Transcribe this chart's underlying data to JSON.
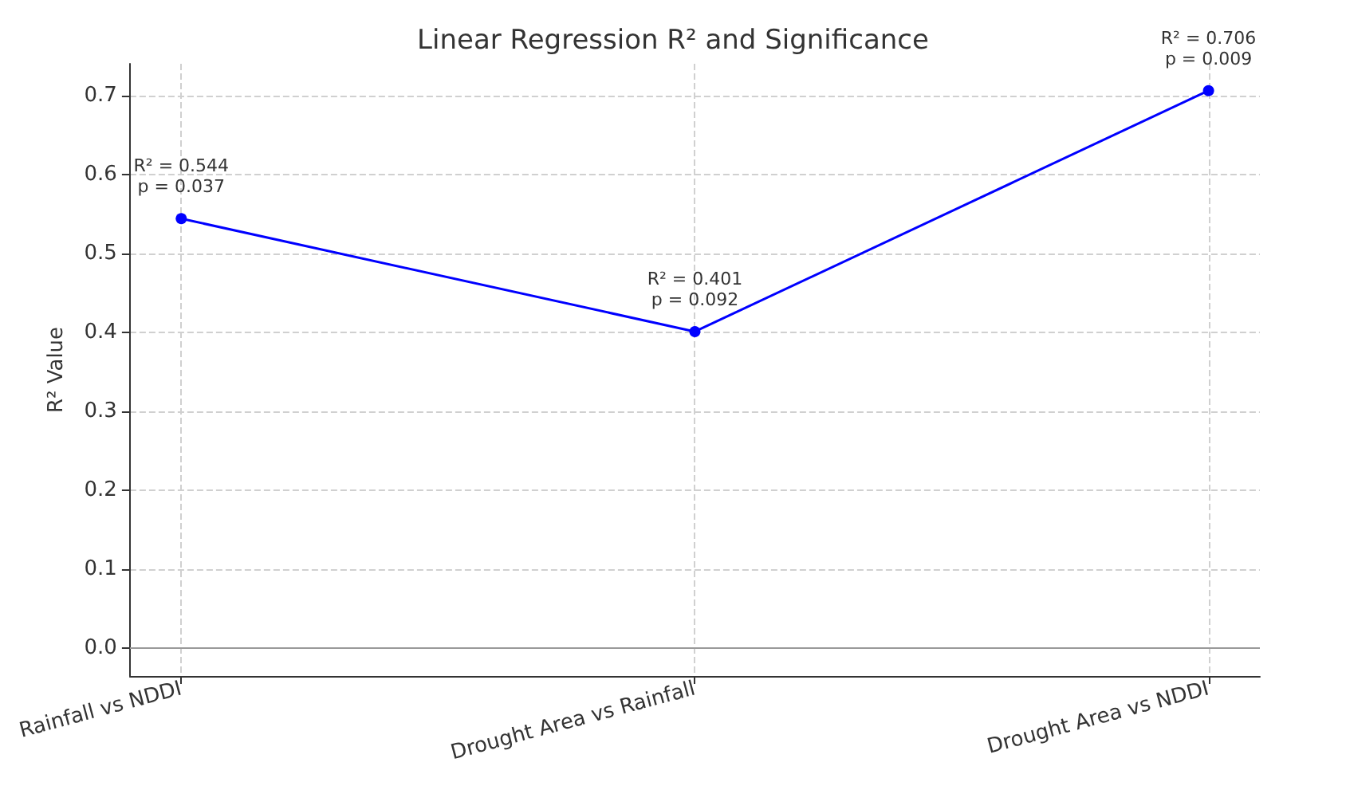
{
  "chart_data": {
    "type": "line",
    "title": "Linear Regression R² and Significance",
    "ylabel": "R² Value",
    "categories": [
      "Rainfall vs NDDI",
      "Drought Area vs Rainfall",
      "Drought Area vs NDDI"
    ],
    "series": [
      {
        "color": "#0000ff",
        "values": [
          0.544,
          0.401,
          0.706
        ],
        "value_labels": [
          "R² = 0.544\np = 0.037",
          "R² = 0.401\np = 0.092",
          "R² = 0.706\np = 0.009"
        ]
      }
    ],
    "ylim": [
      -0.035,
      0.74
    ],
    "yticks": [
      {
        "value": 0,
        "label": "0.0"
      },
      {
        "value": 0.1,
        "label": "0.1"
      },
      {
        "value": 0.2,
        "label": "0.2"
      },
      {
        "value": 0.3,
        "label": "0.3"
      },
      {
        "value": 0.4,
        "label": "0.4"
      },
      {
        "value": 0.5,
        "label": "0.5"
      },
      {
        "value": 0.6,
        "label": "0.6"
      },
      {
        "value": 0.7,
        "label": "0.7"
      }
    ],
    "ref_lines": [
      {
        "axis": "y",
        "value": 0,
        "color": "#999999",
        "line_style": "solid"
      }
    ],
    "grid": true,
    "marker": "circle",
    "line_style": "solid"
  }
}
